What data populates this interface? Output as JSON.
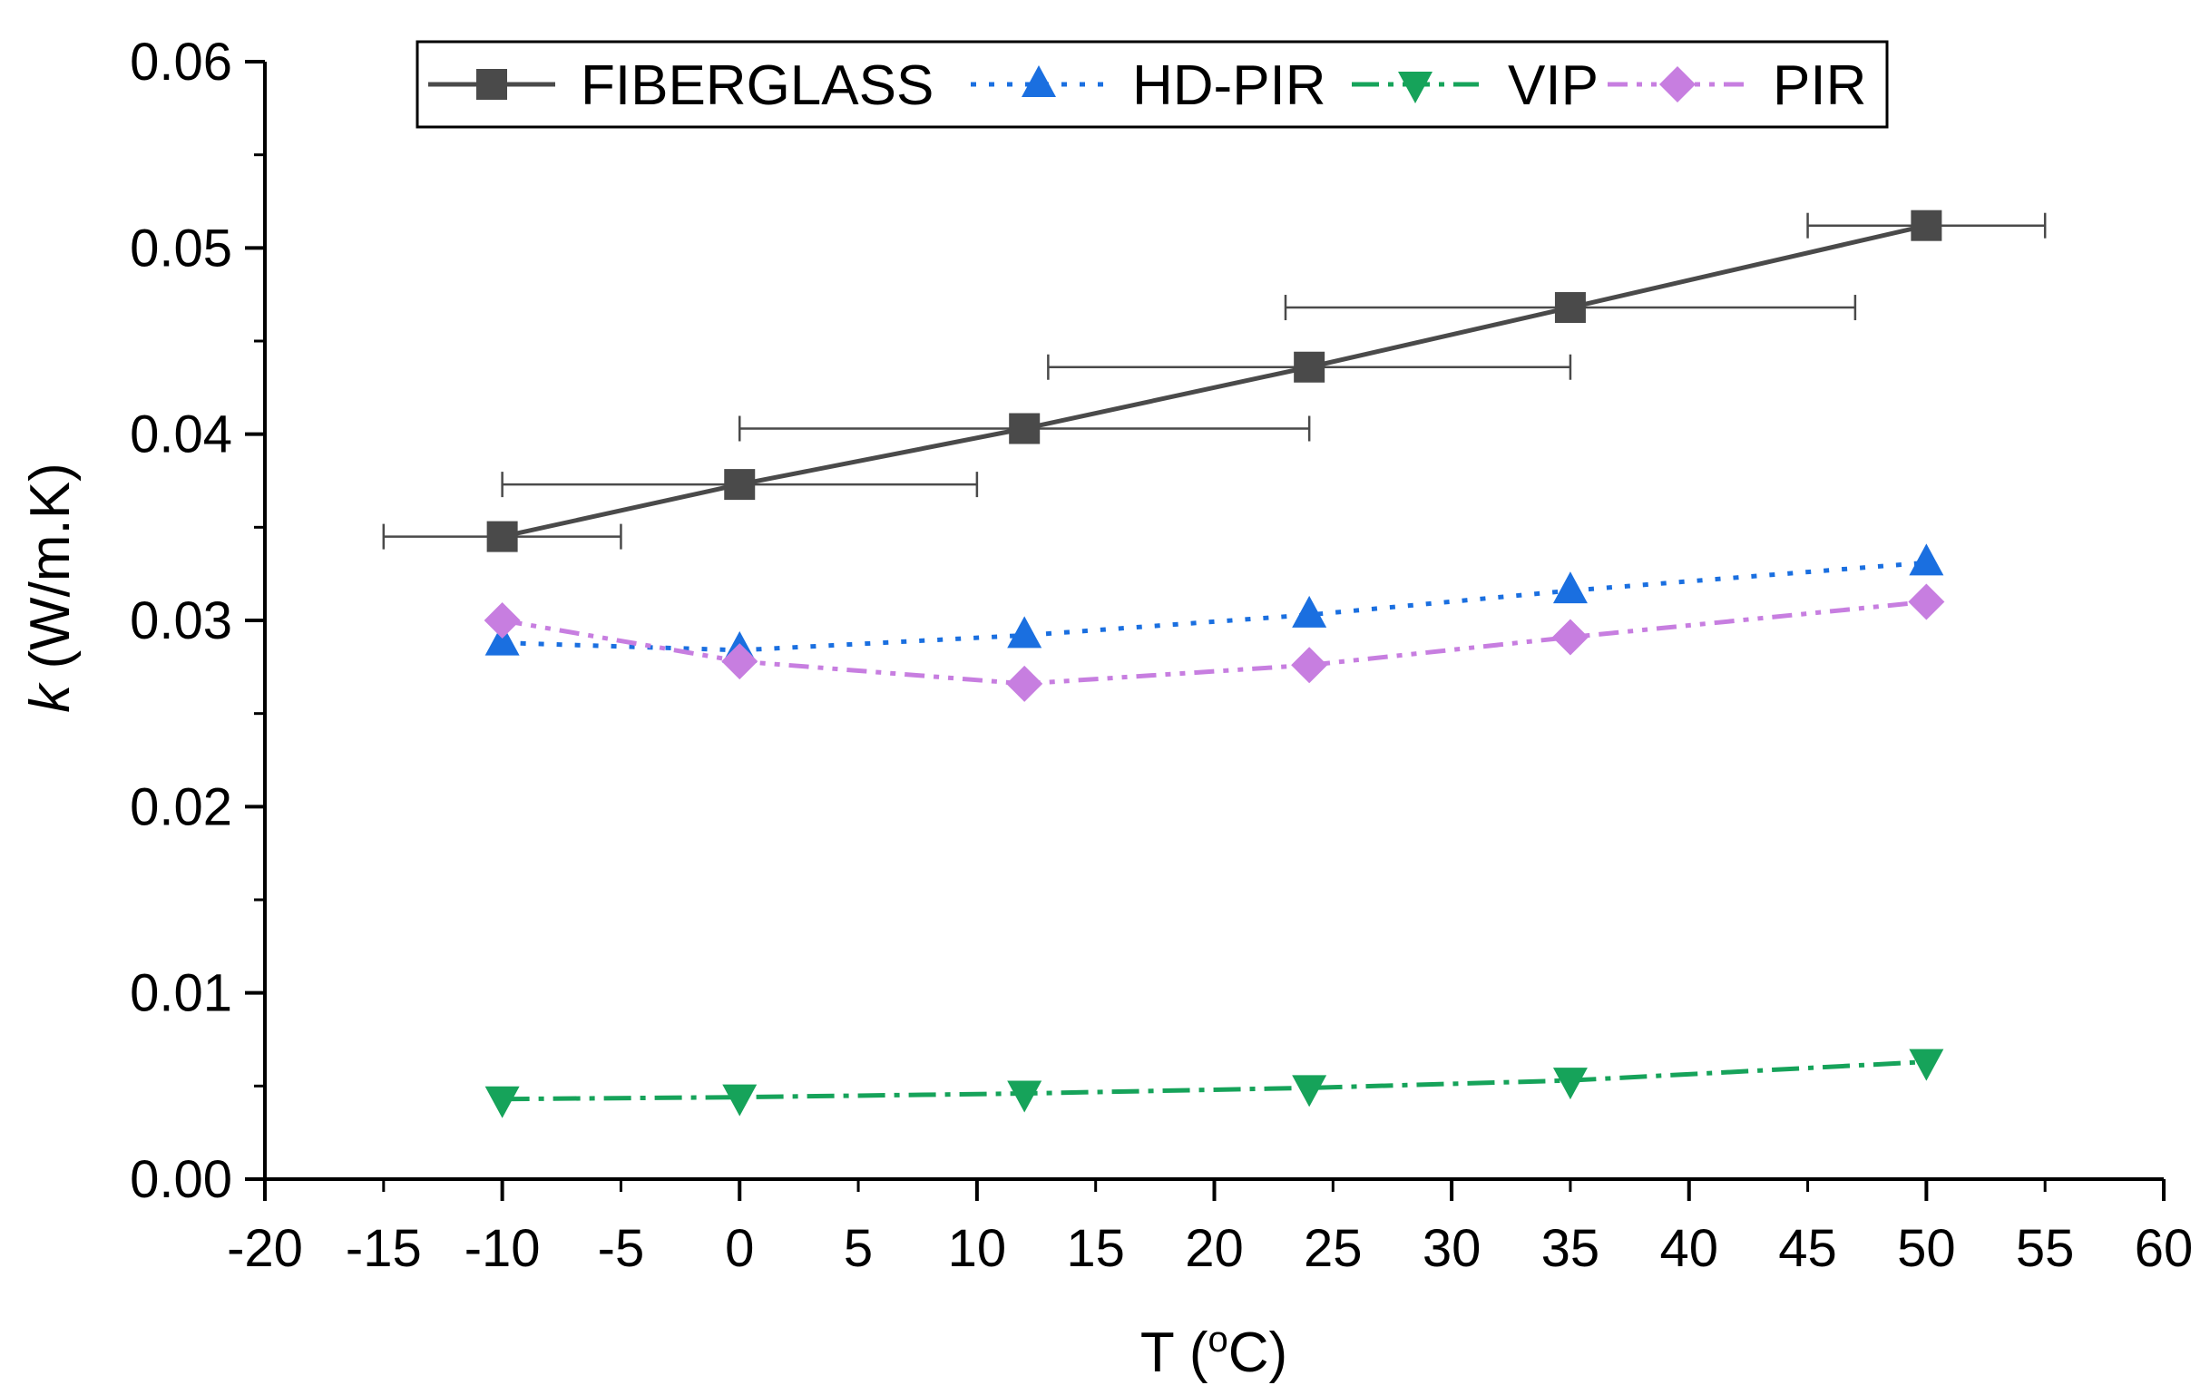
{
  "chart_data": {
    "type": "line",
    "title": "",
    "xlabel": "T (",
    "xlabel_sup": "o",
    "xlabel_tail": "C)",
    "ylabel_italic": "k",
    "ylabel_rest": " (W/m.K)",
    "xlim": [
      -20,
      60
    ],
    "ylim": [
      0,
      0.06
    ],
    "x_ticks": [
      -20,
      -15,
      -10,
      -5,
      0,
      5,
      10,
      15,
      20,
      25,
      30,
      35,
      40,
      45,
      50,
      55,
      60
    ],
    "x_tick_labels": [
      "-20",
      "-15",
      "-10",
      "-5",
      "0",
      "5",
      "10",
      "15",
      "20",
      "25",
      "30",
      "35",
      "40",
      "45",
      "50",
      "55",
      "60"
    ],
    "y_ticks": [
      0,
      0.01,
      0.02,
      0.03,
      0.04,
      0.05,
      0.06
    ],
    "y_tick_labels": [
      "0.00",
      "0.01",
      "0.02",
      "0.03",
      "0.04",
      "0.05",
      "0.06"
    ],
    "grid": false,
    "legend_position": "top",
    "series": [
      {
        "name": "FIBERGLASS",
        "color": "#4a4a4a",
        "marker": "square",
        "line_style": "solid",
        "x": [
          -10,
          0,
          12,
          24,
          35,
          50
        ],
        "y": [
          0.0345,
          0.0373,
          0.0403,
          0.0436,
          0.0468,
          0.0512
        ],
        "x_error_low": [
          -15,
          -10,
          0,
          13,
          23,
          45
        ],
        "x_error_high": [
          -5,
          10,
          24,
          35,
          47,
          55
        ]
      },
      {
        "name": "HD-PIR",
        "color": "#1a6fe0",
        "marker": "triangle-up",
        "line_style": "dot",
        "x": [
          -10,
          0,
          12,
          24,
          35,
          50
        ],
        "y": [
          0.0288,
          0.0284,
          0.0292,
          0.0303,
          0.0316,
          0.0331
        ]
      },
      {
        "name": "VIP",
        "color": "#16a35a",
        "marker": "triangle-down",
        "line_style": "dash-dot",
        "x": [
          -10,
          0,
          12,
          24,
          35,
          50
        ],
        "y": [
          0.0043,
          0.0044,
          0.0046,
          0.0049,
          0.0053,
          0.0063
        ]
      },
      {
        "name": "PIR",
        "color": "#c77ee0",
        "marker": "diamond",
        "line_style": "dash-dot-dot",
        "x": [
          -10,
          0,
          12,
          24,
          35,
          50
        ],
        "y": [
          0.03,
          0.0278,
          0.0266,
          0.0276,
          0.0291,
          0.031
        ]
      }
    ]
  }
}
